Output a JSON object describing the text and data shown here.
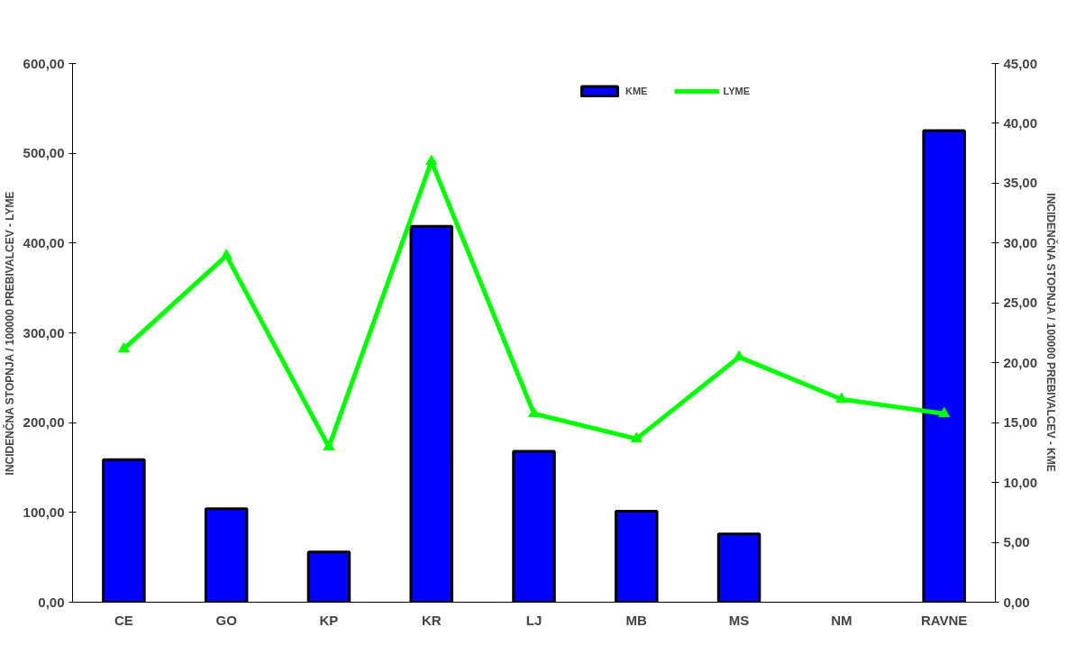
{
  "chart_data": {
    "type": "bar",
    "categories": [
      "CE",
      "GO",
      "KP",
      "KR",
      "LJ",
      "MB",
      "MS",
      "NM",
      "RAVNE"
    ],
    "series": [
      {
        "name": "KME",
        "axis": "y2",
        "color": "#0000ff",
        "values": [
          11.9,
          7.8,
          4.2,
          31.4,
          12.6,
          7.6,
          5.7,
          null,
          39.4
        ]
      },
      {
        "name": "LYME",
        "type": "line",
        "color": "#00ff00",
        "values": [
          282,
          386,
          173,
          491,
          210,
          182,
          273,
          226,
          210
        ]
      }
    ],
    "ylabel": "INCIDENČNA STOPNJA / 100000 PREBIVALCEV - LYME",
    "y2label": "INCIDENČNA STOPNJA / 100000 PREBIVALCEV - KME",
    "ylim": [
      0,
      600
    ],
    "yticks": [
      {
        "value": 0,
        "label": "0,00"
      },
      {
        "value": 100,
        "label": "100,00"
      },
      {
        "value": 200,
        "label": "200,00"
      },
      {
        "value": 300,
        "label": "300,00"
      },
      {
        "value": 400,
        "label": "400,00"
      },
      {
        "value": 500,
        "label": "500,00"
      },
      {
        "value": 600,
        "label": "600,00"
      }
    ],
    "y2lim": [
      0,
      45
    ],
    "y2ticks": [
      {
        "value": 0,
        "label": "0,00"
      },
      {
        "value": 5,
        "label": "5,00"
      },
      {
        "value": 10,
        "label": "10,00"
      },
      {
        "value": 15,
        "label": "15,00"
      },
      {
        "value": 20,
        "label": "20,00"
      },
      {
        "value": 25,
        "label": "25,00"
      },
      {
        "value": 30,
        "label": "30,00"
      },
      {
        "value": 35,
        "label": "35,00"
      },
      {
        "value": 40,
        "label": "40,00"
      },
      {
        "value": 45,
        "label": "45,00"
      }
    ],
    "marker": "triangle",
    "grid": false,
    "legend": "top"
  }
}
